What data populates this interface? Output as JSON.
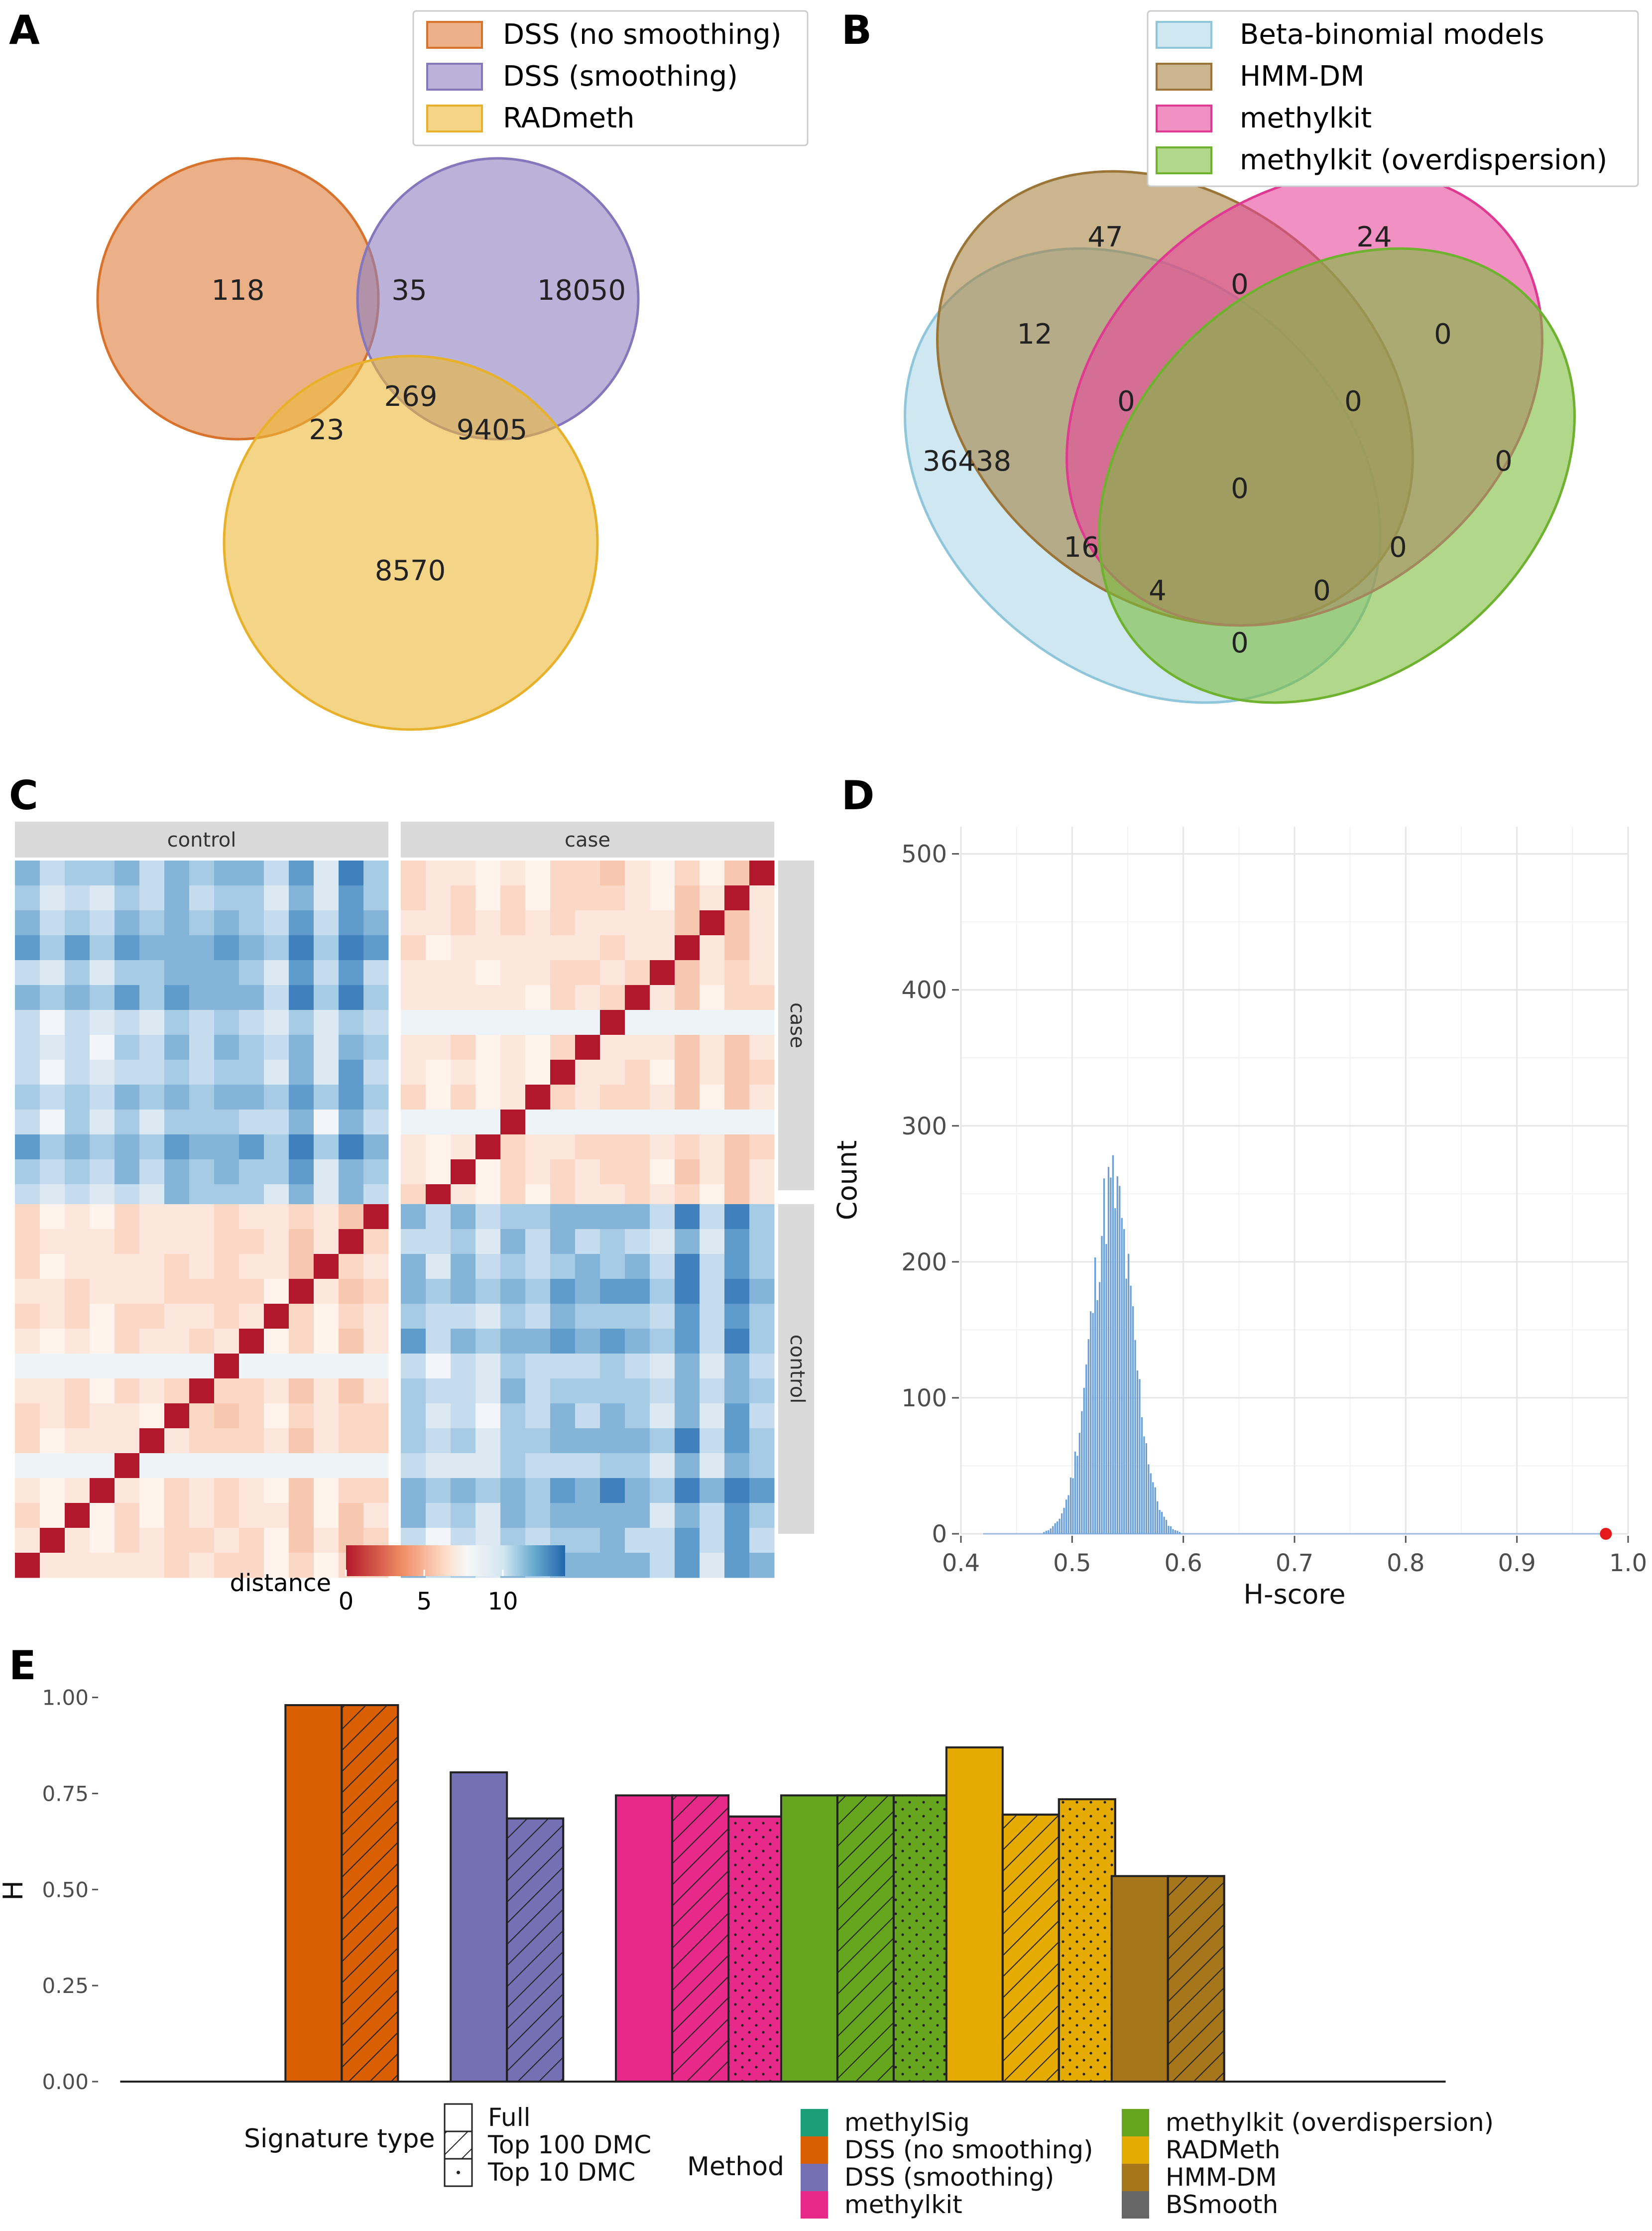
{
  "panels": {
    "A": {
      "letter": "A",
      "legend": [
        "DSS (no smoothing)",
        "DSS (smoothing)",
        "RADmeth"
      ],
      "colors": [
        "#e07b39",
        "#8c7fbf",
        "#ecb937"
      ],
      "counts": {
        "a_only": "118",
        "ab": "35",
        "b_only": "18050",
        "abc": "269",
        "ac": "23",
        "bc": "9405",
        "c_only": "8570"
      }
    },
    "B": {
      "letter": "B",
      "legend": [
        "Beta-binomial models",
        "HMM-DM",
        "methylkit",
        "methylkit (overdispersion)"
      ],
      "colors": [
        "#a6d3e3",
        "#a78342",
        "#e8469b",
        "#7cbd3c"
      ],
      "counts": [
        "47",
        "24",
        "0",
        "12",
        "0",
        "0",
        "0",
        "36438",
        "0",
        "0",
        "16",
        "4",
        "0",
        "0",
        "0"
      ]
    },
    "C": {
      "letter": "C",
      "strip_top": [
        "control",
        "case"
      ],
      "strip_right": [
        "case",
        "control"
      ],
      "legend_title": "distance",
      "legend_ticks": [
        "0",
        "5",
        "10"
      ]
    },
    "D": {
      "letter": "D"
    },
    "E": {
      "letter": "E"
    }
  },
  "chart_data": [
    {
      "panel": "D",
      "type": "bar",
      "xlabel": "H-score",
      "ylabel": "Count",
      "xlim": [
        0.4,
        1.0
      ],
      "ylim": [
        0,
        520
      ],
      "x_ticks": [
        "0.4",
        "0.5",
        "0.6",
        "0.7",
        "0.8",
        "0.9",
        "1.0"
      ],
      "y_ticks": [
        "0",
        "100",
        "200",
        "300",
        "400",
        "500"
      ],
      "histogram": {
        "mean": 0.535,
        "sd": 0.019,
        "peak": 252
      },
      "observed_point": {
        "x": 0.98,
        "y": 0,
        "color": "#e41a1c"
      },
      "bar_color": "#6a9fd8"
    },
    {
      "panel": "E",
      "type": "bar",
      "ylabel": "H",
      "ylim": [
        0,
        1.05
      ],
      "y_ticks": [
        "0.00",
        "0.25",
        "0.50",
        "0.75",
        "1.00"
      ],
      "categories": [
        "methylSig",
        "DSS (no smoothing)",
        "DSS (smoothing)",
        "methylkit",
        "methylkit (overdispersion)",
        "RADMeth",
        "HMM-DM",
        "BSmooth"
      ],
      "colors": [
        "#1b9e77",
        "#d95f02",
        "#7570b3",
        "#e7298a",
        "#66a61e",
        "#e6ab02",
        "#a6761d",
        "#666666"
      ],
      "signature_types": [
        "Full",
        "Top 100 DMC",
        "Top 10 DMC"
      ],
      "series": [
        {
          "name": "Full",
          "values": [
            null,
            0.98,
            0.805,
            0.745,
            0.745,
            0.87,
            0.535,
            null
          ]
        },
        {
          "name": "Top 100 DMC",
          "values": [
            null,
            0.98,
            0.685,
            0.745,
            0.745,
            0.695,
            0.535,
            null
          ]
        },
        {
          "name": "Top 10 DMC",
          "values": [
            null,
            null,
            null,
            0.69,
            0.745,
            0.735,
            null,
            null
          ]
        }
      ],
      "legend": {
        "signature_title": "Signature type",
        "method_title": "Method"
      }
    }
  ]
}
